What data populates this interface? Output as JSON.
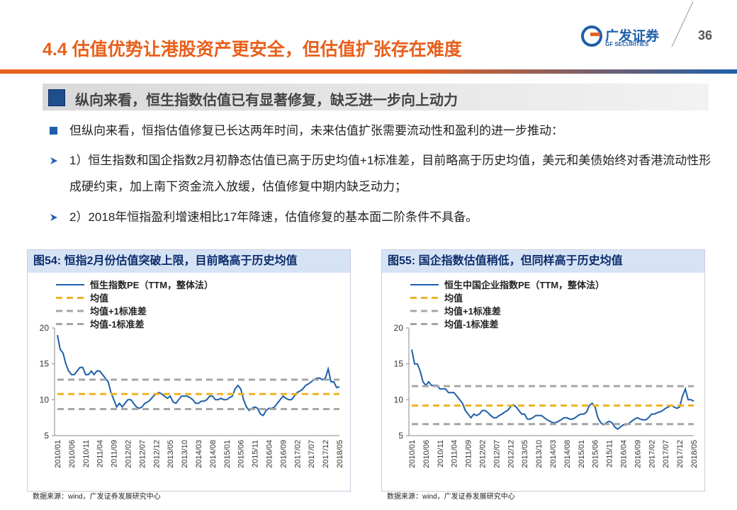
{
  "header": {
    "title": "4.4 估值优势让港股资产更安全，但估值扩张存在难度",
    "logo_cn": "广发证券",
    "logo_en": "GF SECURITIES",
    "page_number": "36"
  },
  "section": {
    "heading": "纵向来看，恒生指数估值已有显著修复，缺乏进一步向上动力"
  },
  "bullets": [
    "但纵向来看，恒指估值修复已长达两年时间，未来估值扩张需要流动性和盈利的进一步推动：",
    "1）恒生指数和国企指数2月初静态估值已高于历史均值+1标准差，目前略高于历史均值，美元和美债始终对香港流动性形成硬约束，加上南下资金流入放缓，估值修复中期内缺乏动力；",
    "2）2018年恒指盈利增速相比17年降速，估值修复的基本面二阶条件不具备。"
  ],
  "chart_data": [
    {
      "type": "line",
      "title": "图54:  恒指2月份估值突破上限，目前略高于历史均值",
      "source": "数据来源：wind，广发证券发展研究中心",
      "categories": [
        "2010/01",
        null,
        null,
        null,
        null,
        "2010/06",
        null,
        null,
        null,
        null,
        "2010/11",
        null,
        null,
        null,
        null,
        "2011/04",
        null,
        null,
        null,
        null,
        "2011/09",
        null,
        null,
        null,
        null,
        "2012/02",
        null,
        null,
        null,
        null,
        "2012/07",
        null,
        null,
        null,
        null,
        "2012/12",
        null,
        null,
        null,
        null,
        "2013/05",
        null,
        null,
        null,
        null,
        "2013/10",
        null,
        null,
        null,
        null,
        "2014/03",
        null,
        null,
        null,
        null,
        "2014/08",
        null,
        null,
        null,
        null,
        "2015/01",
        null,
        null,
        null,
        null,
        "2015/06",
        null,
        null,
        null,
        null,
        "2015/11",
        null,
        null,
        null,
        null,
        "2016/04",
        null,
        null,
        null,
        null,
        "2016/09",
        null,
        null,
        null,
        null,
        "2017/02",
        null,
        null,
        null,
        null,
        "2017/07",
        null,
        null,
        null,
        null,
        "2017/12",
        null,
        null,
        null,
        null,
        "2018/05"
      ],
      "ylim": [
        5,
        20
      ],
      "yticks": [
        5,
        10,
        15,
        20
      ],
      "series": [
        {
          "name": "恒生指数PE（TTM，整体法）",
          "color": "#1f5fa8",
          "values": [
            19,
            17,
            16.5,
            15,
            14,
            13.5,
            13.5,
            14,
            14.5,
            14.5,
            13.5,
            13.5,
            14,
            13.5,
            14,
            14,
            13.5,
            13,
            12.5,
            11,
            10,
            9,
            9.5,
            9,
            9.5,
            10,
            10,
            9.5,
            9,
            8.8,
            9,
            9.5,
            9.7,
            10,
            10.5,
            10.8,
            11,
            10.8,
            10.5,
            10.2,
            10.5,
            9.7,
            9.5,
            10,
            10.5,
            10.5,
            10.5,
            10.3,
            10,
            9.5,
            9.5,
            9.8,
            9.8,
            10,
            10.5,
            10.5,
            10,
            10,
            10.2,
            10,
            10,
            10.3,
            10.5,
            11.5,
            12,
            11.5,
            10,
            9,
            8.5,
            8.8,
            9,
            8.8,
            8,
            7.8,
            8.5,
            8.8,
            8.8,
            9,
            9.5,
            10,
            10.5,
            10.2,
            10,
            10,
            10.5,
            11,
            11.2,
            11.5,
            12,
            12.2,
            12.5,
            12.8,
            13,
            13,
            12.8,
            13,
            14.3,
            12.5,
            12.5,
            11.7,
            11.8
          ]
        },
        {
          "name": "均值",
          "color": "#f0b323",
          "value": 10.8
        },
        {
          "name": "均值+1标准差",
          "color": "#a6a6a6",
          "value": 12.8
        },
        {
          "name": "均值-1标准差",
          "color": "#a6a6a6",
          "value": 8.7
        }
      ]
    },
    {
      "type": "line",
      "title": "图55:  国企指数估值稍低，但同样高于历史均值",
      "source": "数据来源：wind，广发证券发展研究中心",
      "categories": [
        "2010/01",
        null,
        null,
        null,
        null,
        "2010/06",
        null,
        null,
        null,
        null,
        "2010/11",
        null,
        null,
        null,
        null,
        "2011/04",
        null,
        null,
        null,
        null,
        "2011/09",
        null,
        null,
        null,
        null,
        "2012/02",
        null,
        null,
        null,
        null,
        "2012/07",
        null,
        null,
        null,
        null,
        "2012/12",
        null,
        null,
        null,
        null,
        "2013/05",
        null,
        null,
        null,
        null,
        "2013/10",
        null,
        null,
        null,
        null,
        "2014/03",
        null,
        null,
        null,
        null,
        "2014/08",
        null,
        null,
        null,
        null,
        "2015/01",
        null,
        null,
        null,
        null,
        "2015/06",
        null,
        null,
        null,
        null,
        "2015/11",
        null,
        null,
        null,
        null,
        "2016/04",
        null,
        null,
        null,
        null,
        "2016/09",
        null,
        null,
        null,
        null,
        "2017/02",
        null,
        null,
        null,
        null,
        "2017/07",
        null,
        null,
        null,
        null,
        "2017/12",
        null,
        null,
        null,
        null,
        "2018/05"
      ],
      "ylim": [
        5,
        20
      ],
      "yticks": [
        5,
        10,
        15,
        20
      ],
      "series": [
        {
          "name": "恒生中国企业指数PE（TTM，整体法）",
          "color": "#1f5fa8",
          "values": [
            17,
            15,
            15,
            14,
            12.5,
            12,
            12.5,
            12,
            12,
            12,
            11.5,
            11.5,
            11.5,
            11,
            11,
            11,
            10.5,
            10,
            9.5,
            8.5,
            8,
            7.5,
            8,
            7.8,
            8,
            8.5,
            8.5,
            8.2,
            7.8,
            7.5,
            7.5,
            7.8,
            8,
            8.3,
            8.5,
            9,
            9.3,
            9,
            8.5,
            8,
            8,
            7.3,
            7.3,
            7.5,
            7.8,
            7.8,
            7.8,
            7.5,
            7.2,
            7,
            6.8,
            6.8,
            7,
            7.2,
            7.5,
            7.5,
            7.3,
            7.3,
            7.5,
            7.8,
            8,
            8,
            8.3,
            9.2,
            9.5,
            9,
            7.5,
            6.8,
            6.5,
            6.8,
            7,
            6.8,
            6.2,
            5.9,
            6.2,
            6.5,
            6.5,
            6.7,
            7,
            7.3,
            7.5,
            7.3,
            7.2,
            7.2,
            7.5,
            8,
            8,
            8.2,
            8.3,
            8.5,
            8.8,
            9,
            9.2,
            9,
            8.8,
            9,
            10.5,
            11.5,
            10,
            10,
            9.8
          ]
        },
        {
          "name": "均值",
          "color": "#f0b323",
          "value": 9.2
        },
        {
          "name": "均值+1标准差",
          "color": "#a6a6a6",
          "value": 11.9
        },
        {
          "name": "均值-1标准差",
          "color": "#a6a6a6",
          "value": 6.6
        }
      ]
    }
  ]
}
